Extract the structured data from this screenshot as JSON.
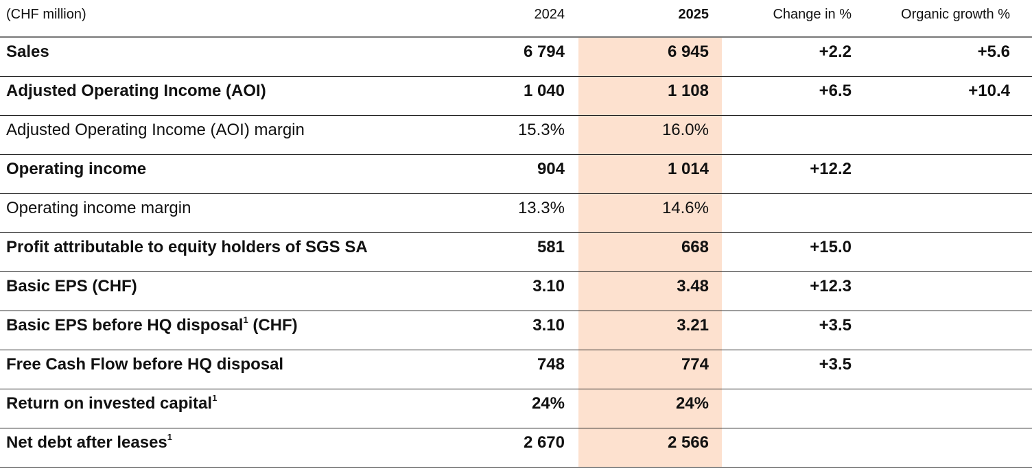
{
  "header": {
    "unit": "(CHF million)",
    "col_2024": "2024",
    "col_2025": "2025",
    "col_change": "Change in %",
    "col_organic": "Organic growth %"
  },
  "highlight_color": "#fde1cf",
  "rows": [
    {
      "label": "Sales",
      "sup": "",
      "suffix": "",
      "bold": true,
      "v2024": "6 794",
      "v2025": "6 945",
      "change": "+2.2",
      "organic": "+5.6"
    },
    {
      "label": "Adjusted Operating Income (AOI)",
      "sup": "",
      "suffix": "",
      "bold": true,
      "v2024": "1 040",
      "v2025": "1 108",
      "change": "+6.5",
      "organic": "+10.4"
    },
    {
      "label": "Adjusted Operating Income (AOI) margin",
      "sup": "",
      "suffix": "",
      "bold": false,
      "v2024": "15.3%",
      "v2025": "16.0%",
      "change": "",
      "organic": ""
    },
    {
      "label": "Operating income",
      "sup": "",
      "suffix": "",
      "bold": true,
      "v2024": "904",
      "v2025": "1 014",
      "change": "+12.2",
      "organic": ""
    },
    {
      "label": "Operating income margin",
      "sup": "",
      "suffix": "",
      "bold": false,
      "v2024": "13.3%",
      "v2025": "14.6%",
      "change": "",
      "organic": ""
    },
    {
      "label": "Profit attributable to equity holders of SGS SA",
      "sup": "",
      "suffix": "",
      "bold": true,
      "v2024": "581",
      "v2025": "668",
      "change": "+15.0",
      "organic": ""
    },
    {
      "label": "Basic EPS (CHF)",
      "sup": "",
      "suffix": "",
      "bold": true,
      "v2024": "3.10",
      "v2025": "3.48",
      "change": "+12.3",
      "organic": ""
    },
    {
      "label": "Basic EPS before HQ disposal",
      "sup": "1",
      "suffix": " (CHF)",
      "bold": true,
      "v2024": "3.10",
      "v2025": "3.21",
      "change": "+3.5",
      "organic": ""
    },
    {
      "label": "Free Cash Flow before HQ disposal",
      "sup": "",
      "suffix": "",
      "bold": true,
      "v2024": "748",
      "v2025": "774",
      "change": "+3.5",
      "organic": ""
    },
    {
      "label": "Return on invested capital",
      "sup": "1",
      "suffix": "",
      "bold": true,
      "v2024": "24%",
      "v2025": "24%",
      "change": "",
      "organic": ""
    },
    {
      "label": "Net debt after leases",
      "sup": "1",
      "suffix": "",
      "bold": true,
      "v2024": "2 670",
      "v2025": "2 566",
      "change": "",
      "organic": ""
    }
  ]
}
